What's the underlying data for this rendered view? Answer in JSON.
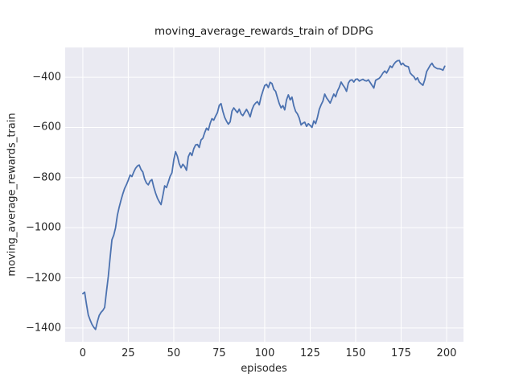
{
  "colors": {
    "line": "#4c72b0",
    "plot_background": "#eaeaf2",
    "gridline": "#ffffff",
    "tick_text": "#262626",
    "title_text": "#1a1a1a",
    "figure_background": "#ffffff"
  },
  "chart_data": {
    "type": "line",
    "title": "moving_average_rewards_train of DDPG",
    "xlabel": "episodes",
    "ylabel": "moving_average_rewards_train",
    "legend": null,
    "grid": true,
    "xlim": [
      -9.7,
      209.3
    ],
    "ylim": [
      -1455,
      -281
    ],
    "xticks": [
      0,
      25,
      50,
      75,
      100,
      125,
      150,
      175,
      200
    ],
    "yticks": [
      -400,
      -600,
      -800,
      -1000,
      -1200,
      -1400
    ],
    "series_name": "moving_average_rewards_train",
    "x": [
      0,
      1,
      2,
      3,
      4,
      5,
      6,
      7,
      8,
      9,
      10,
      11,
      12,
      13,
      14,
      15,
      16,
      17,
      18,
      19,
      20,
      21,
      22,
      23,
      24,
      25,
      26,
      27,
      28,
      29,
      30,
      31,
      32,
      33,
      34,
      35,
      36,
      37,
      38,
      39,
      40,
      41,
      42,
      43,
      44,
      45,
      46,
      47,
      48,
      49,
      50,
      51,
      52,
      53,
      54,
      55,
      56,
      57,
      58,
      59,
      60,
      61,
      62,
      63,
      64,
      65,
      66,
      67,
      68,
      69,
      70,
      71,
      72,
      73,
      74,
      75,
      76,
      77,
      78,
      79,
      80,
      81,
      82,
      83,
      84,
      85,
      86,
      87,
      88,
      89,
      90,
      91,
      92,
      93,
      94,
      95,
      96,
      97,
      98,
      99,
      100,
      101,
      102,
      103,
      104,
      105,
      106,
      107,
      108,
      109,
      110,
      111,
      112,
      113,
      114,
      115,
      116,
      117,
      118,
      119,
      120,
      121,
      122,
      123,
      124,
      125,
      126,
      127,
      128,
      129,
      130,
      131,
      132,
      133,
      134,
      135,
      136,
      137,
      138,
      139,
      140,
      141,
      142,
      143,
      144,
      145,
      146,
      147,
      148,
      149,
      150,
      151,
      152,
      153,
      154,
      155,
      156,
      157,
      158,
      159,
      160,
      161,
      162,
      163,
      164,
      165,
      166,
      167,
      168,
      169,
      170,
      171,
      172,
      173,
      174,
      175,
      176,
      177,
      178,
      179,
      180,
      181,
      182,
      183,
      184,
      185,
      186,
      187,
      188,
      189,
      190,
      191,
      192,
      193,
      194,
      195,
      196,
      197,
      198,
      199
    ],
    "y": [
      -1263,
      -1257,
      -1305,
      -1348,
      -1368,
      -1385,
      -1397,
      -1406,
      -1375,
      -1350,
      -1338,
      -1330,
      -1318,
      -1255,
      -1195,
      -1120,
      -1048,
      -1030,
      -1000,
      -950,
      -918,
      -890,
      -865,
      -843,
      -828,
      -810,
      -790,
      -796,
      -778,
      -763,
      -754,
      -750,
      -768,
      -778,
      -806,
      -822,
      -829,
      -814,
      -808,
      -838,
      -862,
      -882,
      -896,
      -908,
      -872,
      -833,
      -840,
      -818,
      -795,
      -781,
      -730,
      -697,
      -715,
      -745,
      -761,
      -747,
      -756,
      -771,
      -717,
      -701,
      -712,
      -685,
      -670,
      -668,
      -680,
      -650,
      -643,
      -621,
      -603,
      -611,
      -584,
      -565,
      -571,
      -555,
      -541,
      -512,
      -505,
      -536,
      -560,
      -575,
      -587,
      -578,
      -535,
      -522,
      -532,
      -541,
      -527,
      -546,
      -553,
      -540,
      -528,
      -541,
      -558,
      -530,
      -512,
      -503,
      -497,
      -510,
      -478,
      -455,
      -433,
      -428,
      -441,
      -420,
      -425,
      -448,
      -456,
      -481,
      -505,
      -522,
      -513,
      -530,
      -490,
      -470,
      -490,
      -479,
      -514,
      -536,
      -546,
      -563,
      -590,
      -583,
      -579,
      -596,
      -585,
      -592,
      -600,
      -574,
      -585,
      -560,
      -528,
      -510,
      -495,
      -467,
      -482,
      -492,
      -503,
      -485,
      -467,
      -478,
      -455,
      -440,
      -419,
      -431,
      -441,
      -456,
      -423,
      -412,
      -410,
      -419,
      -408,
      -407,
      -415,
      -411,
      -408,
      -413,
      -415,
      -410,
      -421,
      -432,
      -443,
      -412,
      -408,
      -404,
      -395,
      -383,
      -375,
      -383,
      -370,
      -355,
      -361,
      -348,
      -339,
      -334,
      -333,
      -350,
      -344,
      -353,
      -356,
      -358,
      -383,
      -391,
      -397,
      -410,
      -402,
      -419,
      -426,
      -432,
      -410,
      -378,
      -365,
      -352,
      -344,
      -357,
      -362,
      -366,
      -366,
      -368,
      -372,
      -356
    ]
  }
}
